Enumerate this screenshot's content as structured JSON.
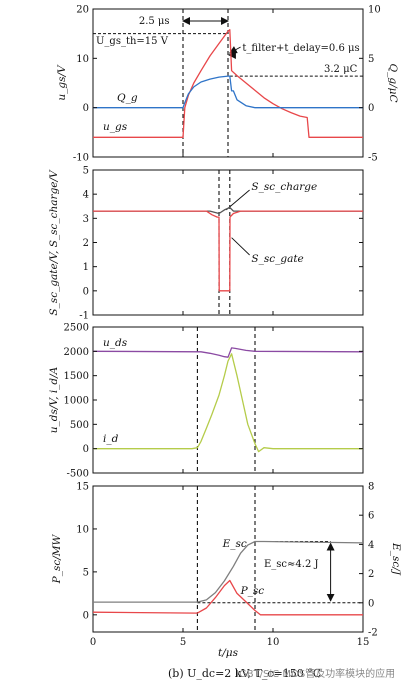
{
  "caption": "(b) U_dc=2 kV, T_c=150 °C",
  "watermark": "IGBT/SiC MOS管及功率模块的应用",
  "xaxis": {
    "label": "t/μs",
    "range": [
      0,
      15
    ],
    "ticks": [
      "0",
      "5",
      "10",
      "15"
    ]
  },
  "chart_data": [
    {
      "type": "line",
      "id": "panel1",
      "ylabel": "u_gs/V",
      "ylabel2": "Q_g/μC",
      "ylim": [
        -10,
        20
      ],
      "y2lim": [
        -5,
        10
      ],
      "yticks": [
        "-10",
        "0",
        "10",
        "20"
      ],
      "y2ticks": [
        "-5",
        "0",
        "5",
        "10"
      ],
      "series": [
        {
          "name": "u_gs",
          "color": "#e8474a",
          "x": [
            0,
            5.0,
            5.1,
            5.3,
            5.6,
            6.0,
            6.5,
            7.0,
            7.5,
            7.6,
            7.7,
            8.0,
            8.5,
            9.0,
            9.5,
            10.0,
            10.5,
            11.0,
            11.5,
            11.9,
            12.0,
            15
          ],
          "y": [
            -6,
            -6,
            0,
            2.5,
            5,
            7.5,
            10.5,
            13,
            15.5,
            15.8,
            7.5,
            6.5,
            5,
            3.5,
            2,
            0.8,
            -0.2,
            -1,
            -1.7,
            -2,
            -6,
            -6
          ]
        },
        {
          "name": "Q_g",
          "color": "#2f74c8",
          "x": [
            0,
            5.0,
            5.1,
            5.3,
            5.6,
            6.0,
            6.5,
            7.0,
            7.5,
            7.6,
            7.7,
            7.8,
            8.0,
            8.5,
            9.0,
            10.0,
            15
          ],
          "y": [
            0,
            0,
            0.5,
            1.4,
            2.1,
            2.6,
            2.9,
            3.1,
            3.2,
            3.2,
            1.7,
            1.7,
            0.8,
            0.2,
            0,
            0,
            0
          ]
        }
      ],
      "labels": {
        "s1": "u_gs",
        "s2": "Q_g"
      },
      "annotations": {
        "width": "2.5 μs",
        "threshold": "U_gs_th=15 V",
        "delay": "t_filter+t_delay=0.6 μs",
        "charge": "3.2 μC"
      },
      "refs": {
        "threshold_y": 15,
        "charge_y2": 3.2,
        "vlines": [
          5.0,
          7.5
        ]
      }
    },
    {
      "type": "line",
      "id": "panel2",
      "ylabel": "S_sc_gate/V, S_sc_charge/V",
      "ylim": [
        -1,
        5
      ],
      "yticks": [
        "-1",
        "0",
        "1",
        "2",
        "3",
        "4",
        "5"
      ],
      "series": [
        {
          "name": "S_sc_charge",
          "color": "#555555",
          "x": [
            0,
            6.5,
            7.0,
            7.3,
            7.6,
            7.8,
            8.0,
            15
          ],
          "y": [
            3.3,
            3.3,
            3.2,
            3.35,
            3.45,
            3.3,
            3.3,
            3.3
          ]
        },
        {
          "name": "S_sc_gate",
          "color": "#e8474a",
          "x": [
            0,
            6.3,
            6.6,
            6.9,
            7.0,
            7.01,
            7.6,
            7.61,
            7.8,
            8.2,
            15
          ],
          "y": [
            3.3,
            3.3,
            3.15,
            3.05,
            3.05,
            0,
            0,
            3.05,
            3.2,
            3.3,
            3.3
          ]
        }
      ],
      "labels": {
        "s1": "S_sc_charge",
        "s2": "S_sc_gate"
      },
      "refs": {
        "vlines": [
          7.0,
          7.6
        ]
      }
    },
    {
      "type": "line",
      "id": "panel3",
      "ylabel": "u_ds/V, i_d/A",
      "ylim": [
        -500,
        2500
      ],
      "yticks": [
        "-500",
        "0",
        "500",
        "1000",
        "1500",
        "2000",
        "2500"
      ],
      "series": [
        {
          "name": "u_ds",
          "color": "#8b4aa3",
          "x": [
            0,
            6.0,
            6.5,
            7.0,
            7.3,
            7.5,
            7.7,
            7.9,
            8.5,
            9.0,
            15
          ],
          "y": [
            2000,
            1990,
            1960,
            1920,
            1890,
            1880,
            2070,
            2060,
            2020,
            2000,
            1990
          ]
        },
        {
          "name": "i_d",
          "color": "#b5cc4a",
          "x": [
            0,
            5.5,
            5.8,
            6.0,
            6.3,
            6.6,
            7.0,
            7.3,
            7.5,
            7.7,
            8.0,
            8.3,
            8.6,
            9.0,
            9.2,
            9.5,
            10.0,
            15
          ],
          "y": [
            0,
            0,
            20,
            150,
            420,
            700,
            1100,
            1500,
            1800,
            1950,
            1500,
            1000,
            500,
            100,
            -60,
            20,
            0,
            0
          ]
        }
      ],
      "labels": {
        "s1": "u_ds",
        "s2": "i_d"
      },
      "refs": {
        "vlines": [
          5.8,
          9.0
        ]
      }
    },
    {
      "type": "line",
      "id": "panel4",
      "ylabel": "P_sc/MW",
      "ylabel2": "E_sc/J",
      "ylim": [
        -2,
        15
      ],
      "y2lim": [
        -2,
        8
      ],
      "yticks": [
        "0",
        "5",
        "10",
        "15"
      ],
      "y2ticks": [
        "-2",
        "0",
        "2",
        "4",
        "6",
        "8"
      ],
      "series": [
        {
          "name": "E_sc",
          "color": "#7f7f7f",
          "axis": "y2",
          "x": [
            0,
            5.8,
            6.3,
            6.8,
            7.3,
            7.8,
            8.2,
            8.6,
            9.0,
            9.5,
            15
          ],
          "y": [
            0.05,
            0.05,
            0.2,
            0.7,
            1.5,
            2.5,
            3.4,
            3.95,
            4.2,
            4.2,
            4.1
          ]
        },
        {
          "name": "P_sc",
          "color": "#e8474a",
          "axis": "y",
          "x": [
            0,
            5.8,
            6.3,
            6.8,
            7.3,
            7.6,
            8.0,
            8.5,
            9.0,
            9.3,
            10,
            15
          ],
          "y": [
            0.3,
            0.2,
            0.8,
            2.0,
            3.4,
            4.0,
            2.5,
            1.5,
            0.5,
            0,
            0,
            0
          ]
        }
      ],
      "labels": {
        "s1": "E_sc",
        "s2": "P_sc"
      },
      "annotations": {
        "energy": "E_sc≈4.2 J"
      },
      "refs": {
        "vlines": [
          5.8,
          9.0
        ],
        "energy_y2": 4.2
      }
    }
  ]
}
